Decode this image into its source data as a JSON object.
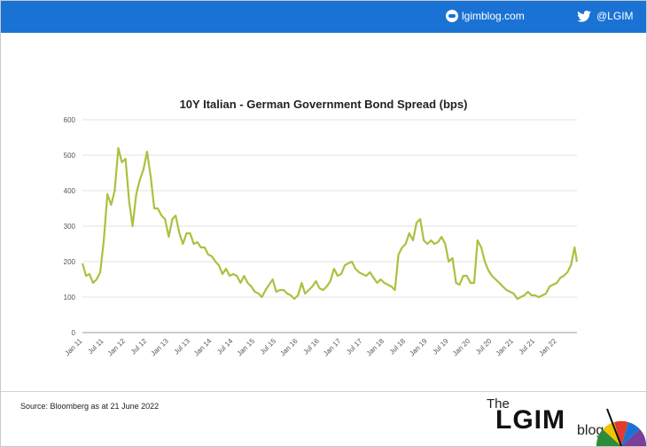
{
  "header": {
    "site_label": "lgimblog.com",
    "twitter_label": "@LGIM",
    "bar_color": "#1a73d4"
  },
  "footer": {
    "source": "Source: Bloomberg as at 21 June 2022",
    "brand_the": "The",
    "brand_name": "LGIM",
    "brand_blog": "blog"
  },
  "chart_data": {
    "type": "line",
    "title": "10Y Italian - German Government Bond Spread (bps)",
    "xlabel": "",
    "ylabel": "",
    "ylim": [
      0,
      600
    ],
    "yticks": [
      0,
      100,
      200,
      300,
      400,
      500,
      600
    ],
    "xlim": [
      "2011-01-01",
      "2022-06-21"
    ],
    "xticks": [
      "Jan 11",
      "Jul 11",
      "Jan 12",
      "Jul 12",
      "Jan 13",
      "Jul 13",
      "Jan 14",
      "Jul 14",
      "Jan 15",
      "Jul 15",
      "Jan 16",
      "Jul 16",
      "Jan 17",
      "Jul 17",
      "Jan 18",
      "Jul 18",
      "Jan 19",
      "Jul 19",
      "Jan 20",
      "Jul 20",
      "Jan 21",
      "Jul 21",
      "Jan 22"
    ],
    "grid": true,
    "line_color": "#a9c23f",
    "series": [
      {
        "points": [
          [
            "2011-01-01",
            195
          ],
          [
            "2011-02-01",
            160
          ],
          [
            "2011-03-01",
            165
          ],
          [
            "2011-04-01",
            140
          ],
          [
            "2011-05-01",
            150
          ],
          [
            "2011-06-01",
            170
          ],
          [
            "2011-07-01",
            260
          ],
          [
            "2011-08-01",
            390
          ],
          [
            "2011-09-01",
            360
          ],
          [
            "2011-10-01",
            400
          ],
          [
            "2011-11-01",
            520
          ],
          [
            "2011-12-01",
            480
          ],
          [
            "2012-01-01",
            490
          ],
          [
            "2012-02-01",
            370
          ],
          [
            "2012-03-01",
            300
          ],
          [
            "2012-04-01",
            390
          ],
          [
            "2012-05-01",
            430
          ],
          [
            "2012-06-01",
            460
          ],
          [
            "2012-07-01",
            510
          ],
          [
            "2012-08-01",
            440
          ],
          [
            "2012-09-01",
            350
          ],
          [
            "2012-10-01",
            350
          ],
          [
            "2012-11-01",
            330
          ],
          [
            "2012-12-01",
            320
          ],
          [
            "2013-01-01",
            270
          ],
          [
            "2013-02-01",
            320
          ],
          [
            "2013-03-01",
            330
          ],
          [
            "2013-04-01",
            280
          ],
          [
            "2013-05-01",
            250
          ],
          [
            "2013-06-01",
            280
          ],
          [
            "2013-07-01",
            280
          ],
          [
            "2013-08-01",
            250
          ],
          [
            "2013-09-01",
            255
          ],
          [
            "2013-10-01",
            240
          ],
          [
            "2013-11-01",
            240
          ],
          [
            "2013-12-01",
            220
          ],
          [
            "2014-01-01",
            215
          ],
          [
            "2014-02-01",
            200
          ],
          [
            "2014-03-01",
            190
          ],
          [
            "2014-04-01",
            165
          ],
          [
            "2014-05-01",
            180
          ],
          [
            "2014-06-01",
            160
          ],
          [
            "2014-07-01",
            165
          ],
          [
            "2014-08-01",
            160
          ],
          [
            "2014-09-01",
            140
          ],
          [
            "2014-10-01",
            160
          ],
          [
            "2014-11-01",
            140
          ],
          [
            "2014-12-01",
            130
          ],
          [
            "2015-01-01",
            115
          ],
          [
            "2015-02-01",
            110
          ],
          [
            "2015-03-01",
            100
          ],
          [
            "2015-04-01",
            120
          ],
          [
            "2015-05-01",
            135
          ],
          [
            "2015-06-01",
            150
          ],
          [
            "2015-07-01",
            115
          ],
          [
            "2015-08-01",
            120
          ],
          [
            "2015-09-01",
            120
          ],
          [
            "2015-10-01",
            110
          ],
          [
            "2015-11-01",
            105
          ],
          [
            "2015-12-01",
            95
          ],
          [
            "2016-01-01",
            105
          ],
          [
            "2016-02-01",
            140
          ],
          [
            "2016-03-01",
            110
          ],
          [
            "2016-04-01",
            120
          ],
          [
            "2016-05-01",
            130
          ],
          [
            "2016-06-01",
            145
          ],
          [
            "2016-07-01",
            125
          ],
          [
            "2016-08-01",
            120
          ],
          [
            "2016-09-01",
            130
          ],
          [
            "2016-10-01",
            145
          ],
          [
            "2016-11-01",
            180
          ],
          [
            "2016-12-01",
            160
          ],
          [
            "2017-01-01",
            165
          ],
          [
            "2017-02-01",
            190
          ],
          [
            "2017-03-01",
            195
          ],
          [
            "2017-04-01",
            200
          ],
          [
            "2017-05-01",
            180
          ],
          [
            "2017-06-01",
            170
          ],
          [
            "2017-07-01",
            165
          ],
          [
            "2017-08-01",
            160
          ],
          [
            "2017-09-01",
            170
          ],
          [
            "2017-10-01",
            155
          ],
          [
            "2017-11-01",
            140
          ],
          [
            "2017-12-01",
            150
          ],
          [
            "2018-01-01",
            140
          ],
          [
            "2018-02-01",
            135
          ],
          [
            "2018-03-01",
            130
          ],
          [
            "2018-04-01",
            120
          ],
          [
            "2018-05-01",
            220
          ],
          [
            "2018-06-01",
            240
          ],
          [
            "2018-07-01",
            250
          ],
          [
            "2018-08-01",
            280
          ],
          [
            "2018-09-01",
            260
          ],
          [
            "2018-10-01",
            310
          ],
          [
            "2018-11-01",
            320
          ],
          [
            "2018-12-01",
            260
          ],
          [
            "2019-01-01",
            250
          ],
          [
            "2019-02-01",
            260
          ],
          [
            "2019-03-01",
            250
          ],
          [
            "2019-04-01",
            255
          ],
          [
            "2019-05-01",
            270
          ],
          [
            "2019-06-01",
            250
          ],
          [
            "2019-07-01",
            200
          ],
          [
            "2019-08-01",
            210
          ],
          [
            "2019-09-01",
            140
          ],
          [
            "2019-10-01",
            135
          ],
          [
            "2019-11-01",
            160
          ],
          [
            "2019-12-01",
            160
          ],
          [
            "2020-01-01",
            140
          ],
          [
            "2020-02-01",
            140
          ],
          [
            "2020-03-01",
            260
          ],
          [
            "2020-04-01",
            240
          ],
          [
            "2020-05-01",
            200
          ],
          [
            "2020-06-01",
            175
          ],
          [
            "2020-07-01",
            160
          ],
          [
            "2020-08-01",
            150
          ],
          [
            "2020-09-01",
            140
          ],
          [
            "2020-10-01",
            130
          ],
          [
            "2020-11-01",
            120
          ],
          [
            "2020-12-01",
            115
          ],
          [
            "2021-01-01",
            110
          ],
          [
            "2021-02-01",
            95
          ],
          [
            "2021-03-01",
            100
          ],
          [
            "2021-04-01",
            105
          ],
          [
            "2021-05-01",
            115
          ],
          [
            "2021-06-01",
            105
          ],
          [
            "2021-07-01",
            105
          ],
          [
            "2021-08-01",
            100
          ],
          [
            "2021-09-01",
            105
          ],
          [
            "2021-10-01",
            110
          ],
          [
            "2021-11-01",
            130
          ],
          [
            "2021-12-01",
            135
          ],
          [
            "2022-01-01",
            140
          ],
          [
            "2022-02-01",
            155
          ],
          [
            "2022-03-01",
            160
          ],
          [
            "2022-04-01",
            170
          ],
          [
            "2022-05-01",
            190
          ],
          [
            "2022-06-01",
            240
          ],
          [
            "2022-06-21",
            200
          ]
        ]
      }
    ]
  }
}
